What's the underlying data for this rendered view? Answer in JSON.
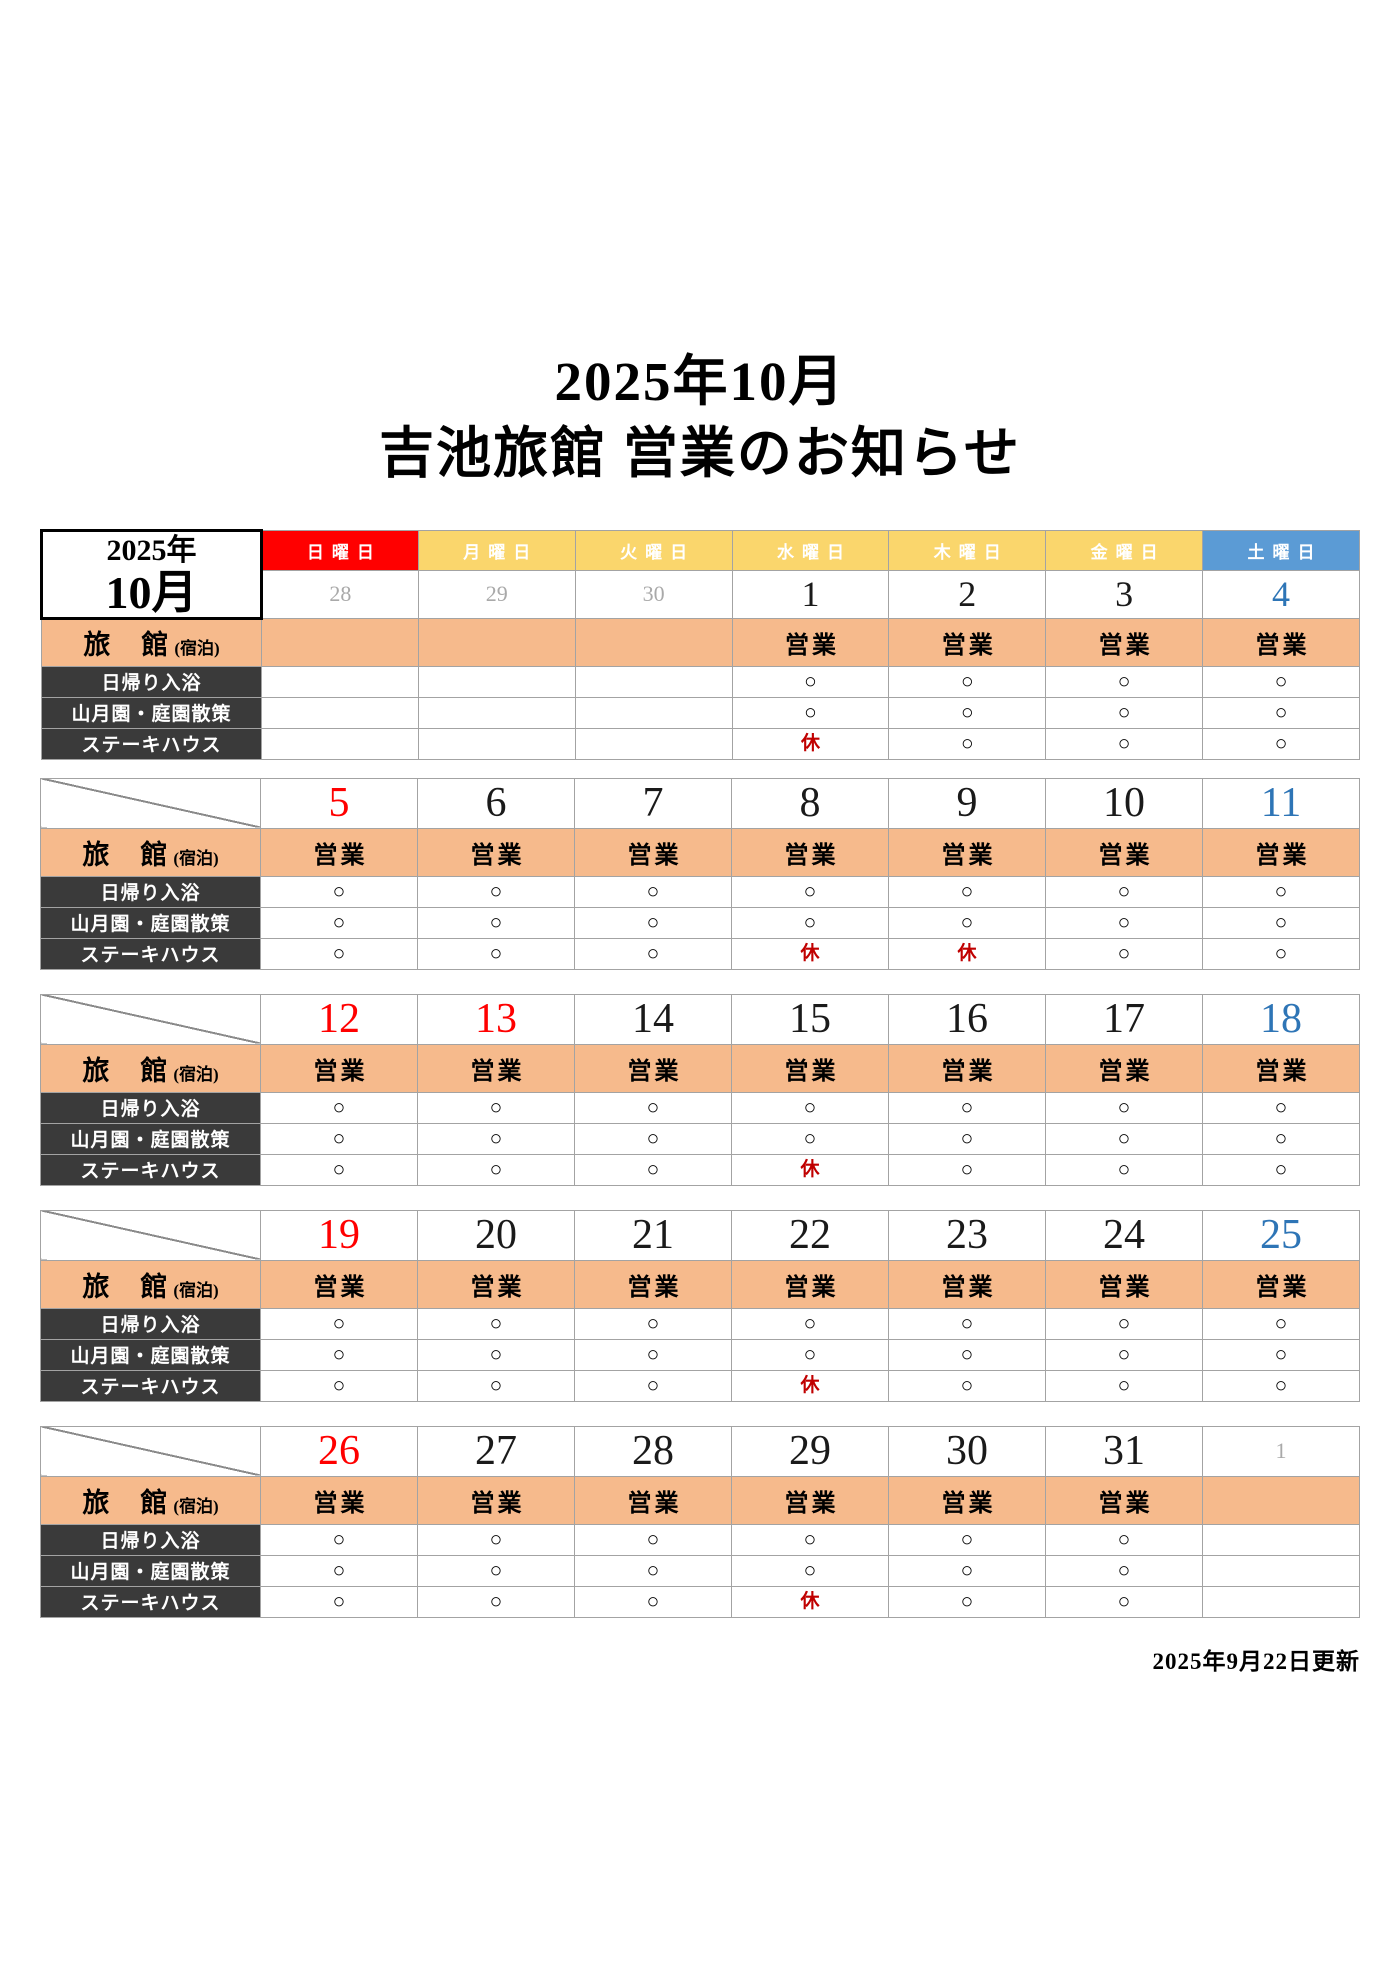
{
  "page": {
    "title_line1": "2025年10月",
    "title_line2": "吉池旅館 営業のお知らせ",
    "updated": "2025年9月22日更新"
  },
  "calendar": {
    "month_cell": {
      "year": "2025年",
      "month": "10月"
    },
    "weekdays": [
      {
        "label": "日曜日",
        "bg": "#ff0000"
      },
      {
        "label": "月曜日",
        "bg": "#fad66c"
      },
      {
        "label": "火曜日",
        "bg": "#fad66c"
      },
      {
        "label": "水曜日",
        "bg": "#fad66c"
      },
      {
        "label": "木曜日",
        "bg": "#fad66c"
      },
      {
        "label": "金曜日",
        "bg": "#fad66c"
      },
      {
        "label": "土曜日",
        "bg": "#5b9bd5"
      }
    ],
    "row_labels": {
      "ryokan": "旅　館",
      "ryokan_sub": "(宿泊)",
      "services": [
        "日帰り入浴",
        "山月園・庭園散策",
        "ステーキハウス"
      ]
    },
    "status": {
      "open": "営業",
      "available": "○",
      "closed": "休"
    },
    "colors": {
      "sunday_header_bg": "#ff0000",
      "weekday_header_bg": "#fad66c",
      "saturday_header_bg": "#5b9bd5",
      "header_text": "#ffffff",
      "ryokan_row_bg": "#f6ba8c",
      "service_label_bg": "#3a3a3a",
      "date_red": "#ff0000",
      "date_blue": "#2e75b6",
      "date_gray": "#a9a9a9",
      "closed_red": "#c00000",
      "grid_border": "#a3a3a3"
    },
    "weeks": [
      {
        "dates": [
          {
            "d": "28",
            "c": "gray"
          },
          {
            "d": "29",
            "c": "gray"
          },
          {
            "d": "30",
            "c": "gray"
          },
          {
            "d": "1",
            "c": "black"
          },
          {
            "d": "2",
            "c": "black"
          },
          {
            "d": "3",
            "c": "black"
          },
          {
            "d": "4",
            "c": "blue"
          }
        ],
        "ryokan": [
          "",
          "",
          "",
          "営業",
          "営業",
          "営業",
          "営業"
        ],
        "services": [
          [
            "",
            "",
            "",
            "○",
            "○",
            "○",
            "○"
          ],
          [
            "",
            "",
            "",
            "○",
            "○",
            "○",
            "○"
          ],
          [
            "",
            "",
            "",
            "休",
            "○",
            "○",
            "○"
          ]
        ]
      },
      {
        "dates": [
          {
            "d": "5",
            "c": "red"
          },
          {
            "d": "6",
            "c": "black"
          },
          {
            "d": "7",
            "c": "black"
          },
          {
            "d": "8",
            "c": "black"
          },
          {
            "d": "9",
            "c": "black"
          },
          {
            "d": "10",
            "c": "black"
          },
          {
            "d": "11",
            "c": "blue"
          }
        ],
        "ryokan": [
          "営業",
          "営業",
          "営業",
          "営業",
          "営業",
          "営業",
          "営業"
        ],
        "services": [
          [
            "○",
            "○",
            "○",
            "○",
            "○",
            "○",
            "○"
          ],
          [
            "○",
            "○",
            "○",
            "○",
            "○",
            "○",
            "○"
          ],
          [
            "○",
            "○",
            "○",
            "休",
            "休",
            "○",
            "○"
          ]
        ]
      },
      {
        "dates": [
          {
            "d": "12",
            "c": "red"
          },
          {
            "d": "13",
            "c": "red"
          },
          {
            "d": "14",
            "c": "black"
          },
          {
            "d": "15",
            "c": "black"
          },
          {
            "d": "16",
            "c": "black"
          },
          {
            "d": "17",
            "c": "black"
          },
          {
            "d": "18",
            "c": "blue"
          }
        ],
        "ryokan": [
          "営業",
          "営業",
          "営業",
          "営業",
          "営業",
          "営業",
          "営業"
        ],
        "services": [
          [
            "○",
            "○",
            "○",
            "○",
            "○",
            "○",
            "○"
          ],
          [
            "○",
            "○",
            "○",
            "○",
            "○",
            "○",
            "○"
          ],
          [
            "○",
            "○",
            "○",
            "休",
            "○",
            "○",
            "○"
          ]
        ]
      },
      {
        "dates": [
          {
            "d": "19",
            "c": "red"
          },
          {
            "d": "20",
            "c": "black"
          },
          {
            "d": "21",
            "c": "black"
          },
          {
            "d": "22",
            "c": "black"
          },
          {
            "d": "23",
            "c": "black"
          },
          {
            "d": "24",
            "c": "black"
          },
          {
            "d": "25",
            "c": "blue"
          }
        ],
        "ryokan": [
          "営業",
          "営業",
          "営業",
          "営業",
          "営業",
          "営業",
          "営業"
        ],
        "services": [
          [
            "○",
            "○",
            "○",
            "○",
            "○",
            "○",
            "○"
          ],
          [
            "○",
            "○",
            "○",
            "○",
            "○",
            "○",
            "○"
          ],
          [
            "○",
            "○",
            "○",
            "休",
            "○",
            "○",
            "○"
          ]
        ]
      },
      {
        "dates": [
          {
            "d": "26",
            "c": "red"
          },
          {
            "d": "27",
            "c": "black"
          },
          {
            "d": "28",
            "c": "black"
          },
          {
            "d": "29",
            "c": "black"
          },
          {
            "d": "30",
            "c": "black"
          },
          {
            "d": "31",
            "c": "black"
          },
          {
            "d": "1",
            "c": "gray"
          }
        ],
        "ryokan": [
          "営業",
          "営業",
          "営業",
          "営業",
          "営業",
          "営業",
          ""
        ],
        "services": [
          [
            "○",
            "○",
            "○",
            "○",
            "○",
            "○",
            ""
          ],
          [
            "○",
            "○",
            "○",
            "○",
            "○",
            "○",
            ""
          ],
          [
            "○",
            "○",
            "○",
            "休",
            "○",
            "○",
            ""
          ]
        ]
      }
    ]
  }
}
